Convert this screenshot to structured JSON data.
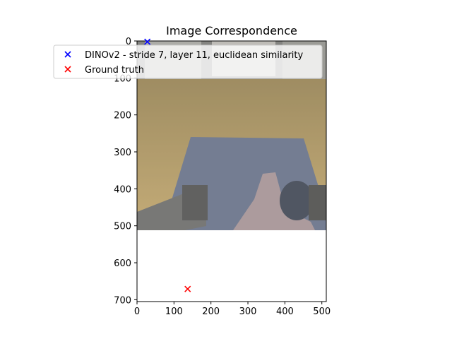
{
  "chart_data": {
    "type": "scatter",
    "title": "Image Correspondence",
    "xlabel": "",
    "ylabel": "",
    "xlim": [
      0,
      512
    ],
    "ylim": [
      705,
      0
    ],
    "y_inverted": true,
    "image_extent": {
      "x": [
        0,
        512
      ],
      "y": [
        0,
        512
      ]
    },
    "image_description": "first-person view of a room with wooden floor, blue rug and grey robot grippers, shown with reduced opacity",
    "x_ticks": [
      0,
      100,
      200,
      300,
      400,
      500
    ],
    "x_tick_labels": [
      "0",
      "100",
      "200",
      "300",
      "400",
      "500"
    ],
    "y_ticks": [
      0,
      100,
      200,
      300,
      400,
      500,
      600,
      700
    ],
    "y_tick_labels": [
      "0",
      "100",
      "200",
      "300",
      "400",
      "500",
      "600",
      "700"
    ],
    "grid": false,
    "legend_position": "upper-left",
    "series": [
      {
        "name": "DINOv2 - stride 7, layer 11, euclidean similarity",
        "color": "#0000ff",
        "marker": "x",
        "points": [
          [
            28,
            2
          ]
        ]
      },
      {
        "name": "Ground truth",
        "color": "#ff0000",
        "marker": "x",
        "points": [
          [
            137,
            671
          ]
        ]
      }
    ]
  }
}
